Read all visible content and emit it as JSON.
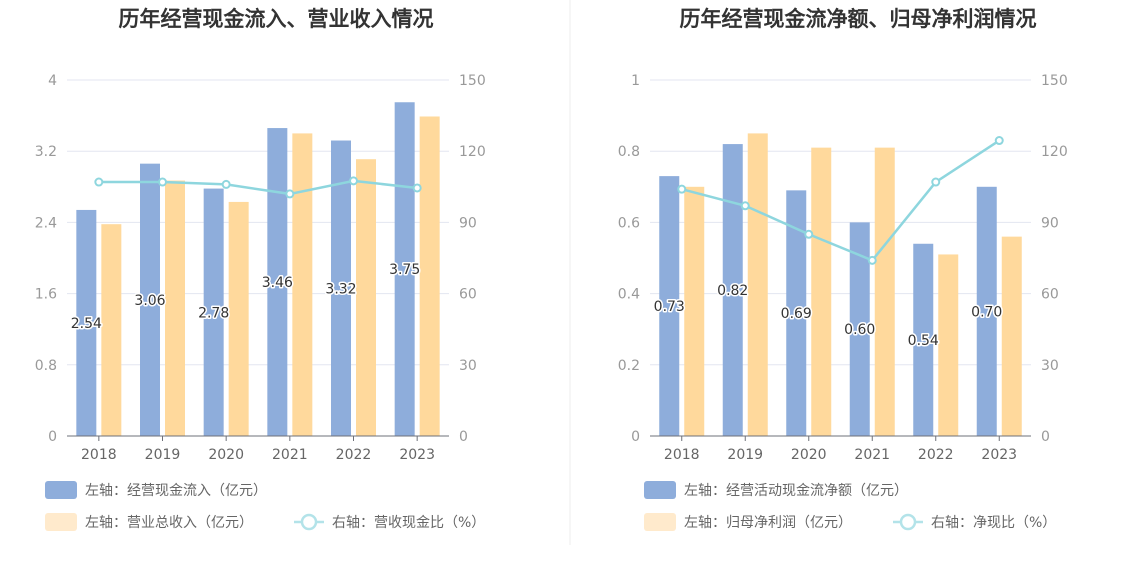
{
  "charts": [
    {
      "title": "历年经营现金流入、营业收入情况",
      "legend": [
        {
          "label": "左轴：经营现金流入（亿元）",
          "kind": "rect",
          "color": "#8EADDB"
        },
        {
          "label": "左轴：营业总收入（亿元）",
          "kind": "rect",
          "color": "#FFEACC"
        },
        {
          "label": "右轴：营收现金比（%）",
          "kind": "line",
          "color": "#8ED6DE"
        }
      ]
    },
    {
      "title": "历年经营现金流净额、归母净利润情况",
      "legend": [
        {
          "label": "左轴：经营活动现金流净额（亿元）",
          "kind": "rect",
          "color": "#8EADDB"
        },
        {
          "label": "左轴：归母净利润（亿元）",
          "kind": "rect",
          "color": "#FFEACC"
        },
        {
          "label": "右轴：净现比（%）",
          "kind": "line",
          "color": "#8ED6DE"
        }
      ]
    }
  ],
  "chart_data": [
    {
      "type": "bar",
      "title": "历年经营现金流入、营业收入情况",
      "categories": [
        "2018",
        "2019",
        "2020",
        "2021",
        "2022",
        "2023"
      ],
      "series": [
        {
          "name": "左轴：经营现金流入（亿元）",
          "axis": "left",
          "type": "bar",
          "color": "#8EADDB",
          "values": [
            2.54,
            3.06,
            2.78,
            3.46,
            3.32,
            3.75
          ],
          "labels": [
            "2.54",
            "3.06",
            "2.78",
            "3.46",
            "3.32",
            "3.75"
          ]
        },
        {
          "name": "左轴：营业总收入（亿元）",
          "axis": "left",
          "type": "bar",
          "color": "#FFD99C",
          "values": [
            2.38,
            2.87,
            2.63,
            3.4,
            3.11,
            3.59
          ]
        },
        {
          "name": "右轴：营收现金比（%）",
          "axis": "right",
          "type": "line",
          "color": "#8ED6DE",
          "values": [
            107,
            107,
            106,
            102,
            107.5,
            104.5
          ]
        }
      ],
      "left_axis": {
        "min": 0,
        "max": 4,
        "ticks": [
          "0",
          "0.8",
          "1.6",
          "2.4",
          "3.2",
          "4"
        ]
      },
      "right_axis": {
        "min": 0,
        "max": 150,
        "ticks": [
          "0",
          "30",
          "60",
          "90",
          "120",
          "150"
        ]
      },
      "grid": true,
      "legend_position": "bottom-left"
    },
    {
      "type": "bar",
      "title": "历年经营现金流净额、归母净利润情况",
      "categories": [
        "2018",
        "2019",
        "2020",
        "2021",
        "2022",
        "2023"
      ],
      "series": [
        {
          "name": "左轴：经营活动现金流净额（亿元）",
          "axis": "left",
          "type": "bar",
          "color": "#8EADDB",
          "values": [
            0.73,
            0.82,
            0.69,
            0.6,
            0.54,
            0.7
          ],
          "labels": [
            "0.73",
            "0.82",
            "0.69",
            "0.60",
            "0.54",
            "0.70"
          ]
        },
        {
          "name": "左轴：归母净利润（亿元）",
          "axis": "left",
          "type": "bar",
          "color": "#FFD99C",
          "values": [
            0.7,
            0.85,
            0.81,
            0.81,
            0.51,
            0.56
          ]
        },
        {
          "name": "右轴：净现比（%）",
          "axis": "right",
          "type": "line",
          "color": "#8ED6DE",
          "values": [
            104,
            97,
            85,
            74,
            107,
            124.5
          ]
        }
      ],
      "left_axis": {
        "min": 0,
        "max": 1,
        "ticks": [
          "0",
          "0.2",
          "0.4",
          "0.6",
          "0.8",
          "1"
        ]
      },
      "right_axis": {
        "min": 0,
        "max": 150,
        "ticks": [
          "0",
          "30",
          "60",
          "90",
          "120",
          "150"
        ]
      },
      "grid": true,
      "legend_position": "bottom-left"
    }
  ]
}
